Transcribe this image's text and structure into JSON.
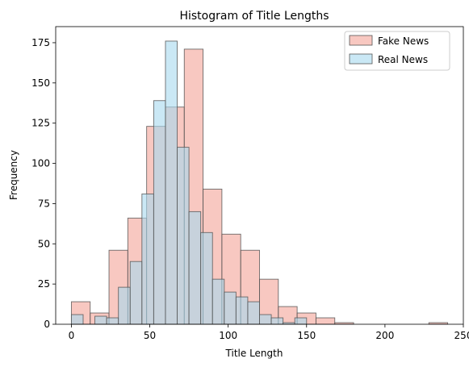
{
  "chart_data": {
    "type": "bar",
    "title": "Histogram of Title Lengths",
    "xlabel": "Title Length",
    "ylabel": "Frequency",
    "xlim": [
      -10,
      250
    ],
    "ylim": [
      0,
      185
    ],
    "xticks": [
      0,
      50,
      100,
      150,
      200,
      250
    ],
    "yticks": [
      0,
      25,
      50,
      75,
      100,
      125,
      150,
      175
    ],
    "grid": false,
    "legend_position": "top-right",
    "series": [
      {
        "name": "Fake News",
        "color": "#f4a497",
        "bins": [
          {
            "x0": 0,
            "x1": 12,
            "count": 14
          },
          {
            "x0": 12,
            "x1": 24,
            "count": 7
          },
          {
            "x0": 24,
            "x1": 36,
            "count": 46
          },
          {
            "x0": 36,
            "x1": 48,
            "count": 66
          },
          {
            "x0": 48,
            "x1": 60,
            "count": 123
          },
          {
            "x0": 60,
            "x1": 72,
            "count": 135
          },
          {
            "x0": 72,
            "x1": 84,
            "count": 171
          },
          {
            "x0": 84,
            "x1": 96,
            "count": 84
          },
          {
            "x0": 96,
            "x1": 108,
            "count": 56
          },
          {
            "x0": 108,
            "x1": 120,
            "count": 46
          },
          {
            "x0": 120,
            "x1": 132,
            "count": 28
          },
          {
            "x0": 132,
            "x1": 144,
            "count": 11
          },
          {
            "x0": 144,
            "x1": 156,
            "count": 7
          },
          {
            "x0": 156,
            "x1": 168,
            "count": 4
          },
          {
            "x0": 168,
            "x1": 180,
            "count": 1
          },
          {
            "x0": 180,
            "x1": 192,
            "count": 0
          },
          {
            "x0": 192,
            "x1": 204,
            "count": 0
          },
          {
            "x0": 204,
            "x1": 216,
            "count": 0
          },
          {
            "x0": 216,
            "x1": 228,
            "count": 0
          },
          {
            "x0": 228,
            "x1": 240,
            "count": 1
          }
        ]
      },
      {
        "name": "Real News",
        "color": "#a6d8ee",
        "bins": [
          {
            "x0": 0,
            "x1": 7.5,
            "count": 6
          },
          {
            "x0": 7.5,
            "x1": 15,
            "count": 0
          },
          {
            "x0": 15,
            "x1": 22.5,
            "count": 5
          },
          {
            "x0": 22.5,
            "x1": 30,
            "count": 4
          },
          {
            "x0": 30,
            "x1": 37.5,
            "count": 23
          },
          {
            "x0": 37.5,
            "x1": 45,
            "count": 39
          },
          {
            "x0": 45,
            "x1": 52.5,
            "count": 81
          },
          {
            "x0": 52.5,
            "x1": 60,
            "count": 139
          },
          {
            "x0": 60,
            "x1": 67.5,
            "count": 176
          },
          {
            "x0": 67.5,
            "x1": 75,
            "count": 110
          },
          {
            "x0": 75,
            "x1": 82.5,
            "count": 70
          },
          {
            "x0": 82.5,
            "x1": 90,
            "count": 57
          },
          {
            "x0": 90,
            "x1": 97.5,
            "count": 28
          },
          {
            "x0": 97.5,
            "x1": 105,
            "count": 20
          },
          {
            "x0": 105,
            "x1": 112.5,
            "count": 17
          },
          {
            "x0": 112.5,
            "x1": 120,
            "count": 14
          },
          {
            "x0": 120,
            "x1": 127.5,
            "count": 6
          },
          {
            "x0": 127.5,
            "x1": 135,
            "count": 4
          },
          {
            "x0": 135,
            "x1": 142.5,
            "count": 1
          },
          {
            "x0": 142.5,
            "x1": 150,
            "count": 4
          }
        ]
      }
    ]
  }
}
